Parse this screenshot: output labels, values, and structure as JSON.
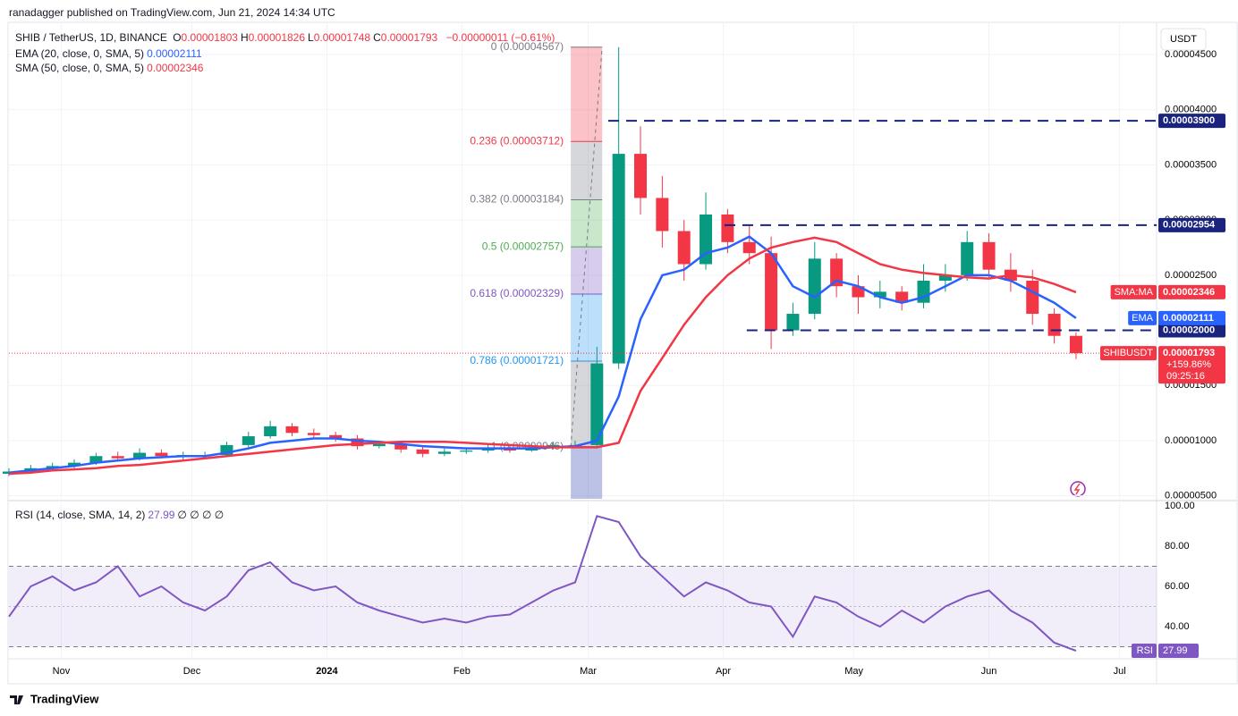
{
  "header": {
    "publisher": "ranadagger published on TradingView.com, Jun 21, 2024 14:34 UTC",
    "currency": "USDT",
    "footer": "TradingView"
  },
  "legend": {
    "symbol": "SHIB / TetherUS, 1D, BINANCE",
    "ohlc": [
      {
        "key": "O",
        "value": "0.00001803"
      },
      {
        "key": "H",
        "value": "0.00001826"
      },
      {
        "key": "L",
        "value": "0.00001748"
      },
      {
        "key": "C",
        "value": "0.00001793"
      }
    ],
    "change": "−0.00000011 (−0.61%)"
  },
  "chart_data": [
    {
      "type": "candlestick",
      "up_color": "#089981",
      "down_color": "#f23645",
      "x": [
        0,
        5,
        10,
        15,
        20,
        25,
        30,
        35,
        40,
        45,
        50,
        55,
        60,
        65,
        70,
        75,
        80,
        85,
        90,
        95,
        100,
        105,
        110,
        115,
        120,
        125,
        130,
        135,
        140,
        145,
        150,
        155,
        160,
        165,
        170,
        175,
        180,
        185,
        190,
        195,
        200,
        205,
        210,
        215,
        220,
        225,
        230,
        235,
        240,
        245
      ],
      "open": [
        7e-06,
        7.2e-06,
        7.5e-06,
        7.7e-06,
        8e-06,
        8.6e-06,
        8.4e-06,
        8.9e-06,
        8.6e-06,
        8.7e-06,
        8.7e-06,
        9.6e-06,
        1.04e-05,
        1.13e-05,
        1.07e-05,
        1.05e-05,
        1.02e-05,
        9.5e-06,
        9.7e-06,
        9.2e-06,
        8.8e-06,
        9e-06,
        9.1e-06,
        9.3e-06,
        9.1e-06,
        9.4e-06,
        9.6e-06,
        9.6e-06,
        1.7e-05,
        3.6e-05,
        3.2e-05,
        2.9e-05,
        2.6e-05,
        3.05e-05,
        2.8e-05,
        2.7e-05,
        2e-05,
        2.15e-05,
        2.65e-05,
        2.4e-05,
        2.3e-05,
        2.35e-05,
        2.25e-05,
        2.45e-05,
        2.5e-05,
        2.8e-05,
        2.55e-05,
        2.45e-05,
        2.15e-05,
        1.95e-05
      ],
      "high": [
        7.5e-06,
        7.8e-06,
        8e-06,
        8.3e-06,
        8.9e-06,
        9e-06,
        9.3e-06,
        9.2e-06,
        9e-06,
        9e-06,
        9.9e-06,
        1.08e-05,
        1.18e-05,
        1.16e-05,
        1.11e-05,
        1.08e-05,
        1.05e-05,
        1e-05,
        1e-05,
        9.5e-06,
        9.3e-06,
        9.4e-06,
        9.6e-06,
        9.6e-06,
        9.7e-06,
        9.9e-06,
        1e-05,
        1.85e-05,
        4.567e-05,
        3.85e-05,
        3.4e-05,
        3e-05,
        3.25e-05,
        3.1e-05,
        2.95e-05,
        2.85e-05,
        2.25e-05,
        2.8e-05,
        2.7e-05,
        2.5e-05,
        2.45e-05,
        2.4e-05,
        2.6e-05,
        2.6e-05,
        2.9e-05,
        2.88e-05,
        2.7e-05,
        2.55e-05,
        2.2e-05,
        1.98e-05
      ],
      "low": [
        6.8e-06,
        7e-06,
        7.3e-06,
        7.5e-06,
        7.8e-06,
        8.1e-06,
        8.2e-06,
        8.4e-06,
        8.3e-06,
        8.4e-06,
        8.5e-06,
        9.4e-06,
        1.02e-05,
        1.04e-05,
        1.03e-05,
        9.9e-06,
        9.2e-06,
        9.3e-06,
        8.9e-06,
        8.5e-06,
        8.6e-06,
        8.8e-06,
        8.9e-06,
        8.9e-06,
        9e-06,
        9.2e-06,
        9.3e-06,
        9.3e-06,
        1.65e-05,
        3.05e-05,
        2.75e-05,
        2.45e-05,
        2.55e-05,
        2.7e-05,
        2.6e-05,
        1.83e-05,
        1.95e-05,
        2.1e-05,
        2.3e-05,
        2.15e-05,
        2.2e-05,
        2.18e-05,
        2.2e-05,
        2.35e-05,
        2.45e-05,
        2.48e-05,
        2.35e-05,
        2.05e-05,
        1.88e-05,
        1.74e-05
      ],
      "close": [
        7.2e-06,
        7.5e-06,
        7.7e-06,
        8e-06,
        8.6e-06,
        8.4e-06,
        8.9e-06,
        8.6e-06,
        8.7e-06,
        8.7e-06,
        9.6e-06,
        1.04e-05,
        1.13e-05,
        1.07e-05,
        1.05e-05,
        1.02e-05,
        9.5e-06,
        9.7e-06,
        9.2e-06,
        8.8e-06,
        9e-06,
        9.1e-06,
        9.3e-06,
        9.1e-06,
        9.4e-06,
        9.6e-06,
        9.6e-06,
        1.7e-05,
        3.6e-05,
        3.2e-05,
        2.9e-05,
        2.6e-05,
        3.05e-05,
        2.8e-05,
        2.7e-05,
        2e-05,
        2.15e-05,
        2.65e-05,
        2.4e-05,
        2.3e-05,
        2.35e-05,
        2.25e-05,
        2.45e-05,
        2.5e-05,
        2.8e-05,
        2.55e-05,
        2.45e-05,
        2.15e-05,
        1.95e-05,
        1.793e-05
      ],
      "series": [
        {
          "name": "EMA (20, close, 0, SMA, 5)",
          "axis_tag": "EMA",
          "last_label": "0.00002111",
          "color": "#2962ff",
          "values": [
            7.1e-06,
            7.3e-06,
            7.5e-06,
            7.7e-06,
            8e-06,
            8.2e-06,
            8.4e-06,
            8.5e-06,
            8.6e-06,
            8.6e-06,
            8.9e-06,
            9.3e-06,
            9.8e-06,
            1e-05,
            1.02e-05,
            1.02e-05,
            1e-05,
            9.9e-06,
            9.7e-06,
            9.5e-06,
            9.4e-06,
            9.3e-06,
            9.3e-06,
            9.3e-06,
            9.3e-06,
            9.4e-06,
            9.5e-06,
            1e-05,
            1.4e-05,
            2.1e-05,
            2.5e-05,
            2.55e-05,
            2.7e-05,
            2.75e-05,
            2.85e-05,
            2.7e-05,
            2.4e-05,
            2.3e-05,
            2.45e-05,
            2.4e-05,
            2.3e-05,
            2.25e-05,
            2.3e-05,
            2.4e-05,
            2.5e-05,
            2.5e-05,
            2.45e-05,
            2.35e-05,
            2.25e-05,
            2.111e-05
          ]
        },
        {
          "name": "SMA (50, close, 0, SMA, 5)",
          "axis_tag": "SMA:MA",
          "last_label": "0.00002346",
          "color": "#f23645",
          "values": [
            7e-06,
            7.1e-06,
            7.3e-06,
            7.4e-06,
            7.5e-06,
            7.7e-06,
            7.8e-06,
            8e-06,
            8.2e-06,
            8.4e-06,
            8.6e-06,
            8.8e-06,
            9e-06,
            9.2e-06,
            9.4e-06,
            9.6e-06,
            9.7e-06,
            9.8e-06,
            9.9e-06,
            9.9e-06,
            9.9e-06,
            9.8e-06,
            9.7e-06,
            9.6e-06,
            9.5e-06,
            9.4e-06,
            9.4e-06,
            9.4e-06,
            9.8e-06,
            1.45e-05,
            1.75e-05,
            2.05e-05,
            2.3e-05,
            2.5e-05,
            2.65e-05,
            2.75e-05,
            2.8e-05,
            2.84e-05,
            2.8e-05,
            2.7e-05,
            2.6e-05,
            2.55e-05,
            2.52e-05,
            2.5e-05,
            2.48e-05,
            2.47e-05,
            2.5e-05,
            2.48e-05,
            2.42e-05,
            2.346e-05
          ]
        }
      ],
      "xlim": [
        0,
        263.5
      ],
      "xticks": [
        {
          "value": 12,
          "label": "Nov"
        },
        {
          "value": 42,
          "label": "Dec"
        },
        {
          "value": 73,
          "label": "2024"
        },
        {
          "value": 104,
          "label": "Feb"
        },
        {
          "value": 133,
          "label": "Mar"
        },
        {
          "value": 164,
          "label": "Apr"
        },
        {
          "value": 194,
          "label": "May"
        },
        {
          "value": 225,
          "label": "Jun"
        },
        {
          "value": 255,
          "label": "Jul"
        }
      ],
      "ylim": [
        4.73e-06,
        4.792e-05
      ],
      "yticks": [
        {
          "value": 4.5e-05,
          "label": "0.00004500"
        },
        {
          "value": 4e-05,
          "label": "0.00004000"
        },
        {
          "value": 3.5e-05,
          "label": "0.00003500"
        },
        {
          "value": 3e-05,
          "label": "0.00003000"
        },
        {
          "value": 2.5e-05,
          "label": "0.00002500"
        },
        {
          "value": 1.5e-05,
          "label": "0.00001500"
        },
        {
          "value": 1e-05,
          "label": "0.00001000"
        },
        {
          "value": 5e-06,
          "label": "0.00000500"
        }
      ],
      "grid": true,
      "levels": [
        {
          "value": 3.9e-05,
          "label": "0.00003900",
          "x_start": 137.6
        },
        {
          "value": 2.954e-05,
          "label": "0.00002954",
          "x_start": 164.3
        },
        {
          "value": 2e-05,
          "label": "0.00002000",
          "x_start": 169.4
        }
      ],
      "level_color": "#1a237e",
      "last": {
        "name": "SHIBUSDT",
        "value": 1.793e-05,
        "label": "0.00001793",
        "change": "+159.86%",
        "countdown": "09:25:16",
        "color": "#f23645"
      },
      "fib": {
        "x": [
          129,
          136.2
        ],
        "below_color": "#3f51b5",
        "levels": [
          {
            "value": 4.567e-05,
            "label": "0 (0.00004567)",
            "color": "#787b86"
          },
          {
            "value": 3.712e-05,
            "label": "0.236 (0.00003712)",
            "color": "#f23645"
          },
          {
            "value": 3.184e-05,
            "label": "0.382 (0.00003184)",
            "color": "#787b86"
          },
          {
            "value": 2.757e-05,
            "label": "0.5 (0.00002757)",
            "color": "#4caf50"
          },
          {
            "value": 2.329e-05,
            "label": "0.618 (0.00002329)",
            "color": "#7e57c2"
          },
          {
            "value": 1.721e-05,
            "label": "0.786 (0.00001721)",
            "color": "#2196f3"
          },
          {
            "value": 9.46e-06,
            "label": "1 (0.00000946)",
            "color": "#787b86"
          }
        ]
      }
    },
    {
      "type": "line",
      "name": "RSI (14, close, SMA, 14, 2)",
      "last_label": "27.99",
      "flags": "∅ ∅ ∅ ∅",
      "axis_tag": "RSI",
      "color": "#7e57c2",
      "values": [
        45,
        60,
        65,
        58,
        62,
        70,
        55,
        60,
        52,
        48,
        55,
        68,
        72,
        62,
        58,
        60,
        52,
        48,
        45,
        42,
        44,
        42,
        45,
        46,
        52,
        58,
        62,
        95,
        92,
        75,
        65,
        55,
        62,
        58,
        52,
        50,
        35,
        55,
        52,
        45,
        40,
        48,
        42,
        50,
        55,
        58,
        48,
        42,
        32,
        27.99
      ],
      "ylim": [
        24.9,
        101.8
      ],
      "yticks": [
        {
          "value": 40,
          "label": "40.00"
        },
        {
          "value": 60,
          "label": "60.00"
        },
        {
          "value": 80,
          "label": "80.00"
        },
        {
          "value": 100,
          "label": "100.00"
        }
      ],
      "band": [
        30,
        70
      ],
      "mid": 50
    }
  ]
}
